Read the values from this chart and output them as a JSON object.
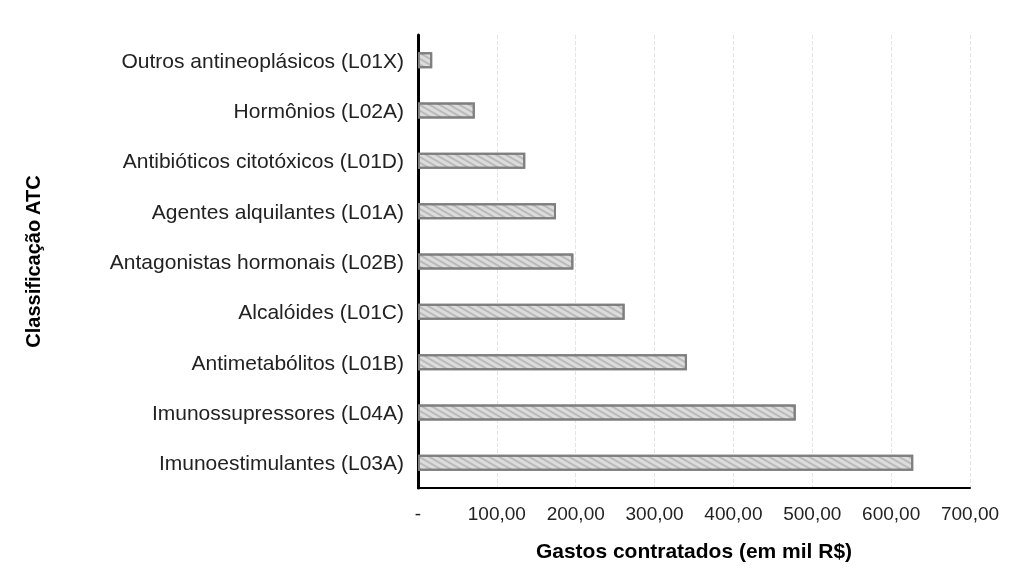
{
  "chart_data": {
    "type": "bar",
    "orientation": "horizontal",
    "xlabel": "Gastos contratados (em mil R$)",
    "ylabel": "Classificação ATC",
    "categories": [
      "Outros antineoplásicos (L01X)",
      "Hormônios (L02A)",
      "Antibióticos citotóxicos (L01D)",
      "Agentes alquilantes (L01A)",
      "Antagonistas hormonais (L02B)",
      "Alcalóides (L01C)",
      "Antimetabólitos (L01B)",
      "Imunossupressores (L04A)",
      "Imunoestimulantes (L03A)"
    ],
    "values": [
      18,
      72,
      136,
      175,
      197,
      262,
      341,
      479,
      628
    ],
    "color": "#dcdcdc",
    "xlim": [
      0,
      700
    ],
    "xticks": [
      {
        "value": 0,
        "label": "-"
      },
      {
        "value": 100,
        "label": "100,00"
      },
      {
        "value": 200,
        "label": "200,00"
      },
      {
        "value": 300,
        "label": "300,00"
      },
      {
        "value": 400,
        "label": "400,00"
      },
      {
        "value": 500,
        "label": "500,00"
      },
      {
        "value": 600,
        "label": "600,00"
      },
      {
        "value": 700,
        "label": "700,00"
      }
    ],
    "grid": "x"
  }
}
